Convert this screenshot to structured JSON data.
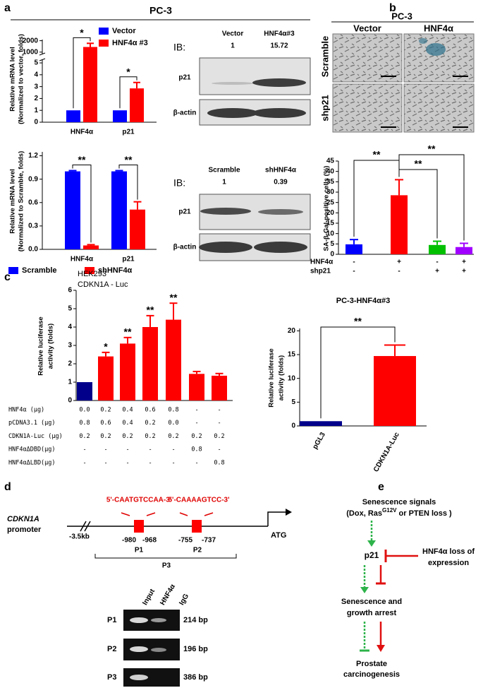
{
  "figure": {
    "letters": [
      "a",
      "b",
      "c",
      "d",
      "e"
    ],
    "a_title": "PC-3"
  },
  "chart_data": [
    {
      "type": "bar",
      "ylabel": [
        "Relative mRNA level",
        "(Normalized to vector, folds)"
      ],
      "categories": [
        "HNF4α",
        "p21"
      ],
      "series": [
        {
          "name": "Vector",
          "color": "#0000ff",
          "values": [
            1,
            1
          ]
        },
        {
          "name": "HNF4α #3",
          "color": "#ff0000",
          "values": [
            1450,
            2.85
          ],
          "errors": [
            320,
            0.5
          ]
        }
      ],
      "ylim": [
        0,
        2100
      ],
      "ybreak": [
        5.3,
        800
      ],
      "yticks": [
        0,
        1,
        2,
        3,
        4,
        5,
        1000,
        2000
      ],
      "significance": [
        "*",
        "*"
      ],
      "legend": "upper right"
    },
    {
      "type": "bar",
      "ylabel": [
        "Relative mRNA level",
        "(Normalized to Scramble, folds)"
      ],
      "categories": [
        "HNF4α",
        "p21"
      ],
      "series": [
        {
          "name": "Scramble",
          "color": "#0000ff",
          "values": [
            1,
            1
          ],
          "errors": [
            0.01,
            0.01
          ]
        },
        {
          "name": "shHNF4α",
          "color": "#ff0000",
          "values": [
            0.05,
            0.51
          ],
          "errors": [
            0.01,
            0.1
          ]
        }
      ],
      "ylim": [
        0,
        1.25
      ],
      "yticks": [
        {
          "value": 0,
          "label": "0.0"
        },
        0.3,
        0.6,
        0.9,
        1.2
      ],
      "significance": [
        "**",
        "**"
      ],
      "legend": "bottom"
    },
    {
      "type": "bar",
      "ylabel": [
        "SA-β-Gal-positive cells (%)"
      ],
      "categories": [
        null,
        null,
        null,
        null
      ],
      "values": [
        4.8,
        28.5,
        4.5,
        3.5
      ],
      "errors": [
        2.3,
        7.5,
        1.8,
        1.8
      ],
      "colors": [
        "#0000ff",
        "#ff0000",
        "#00c000",
        "#a000ff"
      ],
      "ylim": [
        0,
        45
      ],
      "yticks": [
        0,
        5,
        10,
        15,
        20,
        25,
        30,
        35,
        40,
        45
      ],
      "significance": [
        "**",
        "**",
        "**"
      ],
      "conditions": [
        {
          "name": "HNF4α",
          "values": [
            "-",
            "+",
            "-",
            "+"
          ]
        },
        {
          "name": "shp21",
          "values": [
            "-",
            "-",
            "+",
            "+"
          ]
        }
      ]
    },
    {
      "type": "bar",
      "title": [
        "HEK293",
        "CDKN1A - Luc"
      ],
      "ylabel": [
        "Relative luciferase",
        "activity (folds)"
      ],
      "categories": [
        null,
        null,
        null,
        null,
        null,
        null,
        null
      ],
      "values": [
        1,
        2.4,
        3.1,
        4.0,
        4.4,
        1.45,
        1.35
      ],
      "errors": [
        null,
        0.22,
        0.33,
        0.62,
        0.9,
        0.13,
        0.12
      ],
      "colors": [
        "#00008b",
        "#ff0000",
        "#ff0000",
        "#ff0000",
        "#ff0000",
        "#ff0000",
        "#ff0000"
      ],
      "ylim": [
        0,
        6
      ],
      "yticks": [
        0,
        1,
        2,
        3,
        4,
        5,
        6
      ],
      "significance": [
        null,
        "*",
        "**",
        "**",
        "**",
        null,
        null
      ],
      "conditions": [
        {
          "name": "HNF4α (μg)",
          "values": [
            "0.0",
            "0.2",
            "0.4",
            "0.6",
            "0.8",
            "-",
            "-"
          ]
        },
        {
          "name": "pCDNA3.1 (μg)",
          "values": [
            "0.8",
            "0.6",
            "0.4",
            "0.2",
            "0.0",
            "-",
            "-"
          ]
        },
        {
          "name": "CDKN1A-Luc (μg)",
          "values": [
            "0.2",
            "0.2",
            "0.2",
            "0.2",
            "0.2",
            "0.2",
            "0.2"
          ]
        },
        {
          "name": "HNF4αΔDBD(μg)",
          "values": [
            "-",
            "-",
            "-",
            "-",
            "-",
            "0.8",
            "-"
          ]
        },
        {
          "name": "HNF4αΔLBD(μg)",
          "values": [
            "-",
            "-",
            "-",
            "-",
            "-",
            "-",
            "0.8"
          ]
        }
      ]
    },
    {
      "type": "bar",
      "title": "PC-3-HNF4α#3",
      "ylabel": [
        "Relative luciferase",
        "activity (folds)"
      ],
      "categories": [
        "pGL3",
        "CDKN1A-Luc"
      ],
      "values": [
        1,
        14.7
      ],
      "errors": [
        null,
        2.3
      ],
      "colors": [
        "#00008b",
        "#ff0000"
      ],
      "ylim": [
        0,
        20.5
      ],
      "yticks": [
        0,
        5,
        10,
        15,
        20
      ],
      "significance": [
        "**"
      ]
    }
  ],
  "blots": [
    {
      "ib": "IB:",
      "lanes": [
        "Vector",
        "HNF4α#3"
      ],
      "quant": [
        1,
        15.72
      ],
      "rows": [
        "p21",
        "β-actin"
      ]
    },
    {
      "ib": "IB:",
      "lanes": [
        "Scramble",
        "shHNF4α"
      ],
      "quant": [
        1,
        0.39
      ],
      "rows": [
        "p21",
        "β-actin"
      ]
    }
  ],
  "micrographs": {
    "title": "PC-3",
    "columns": [
      "Vector",
      "HNF4α"
    ],
    "rows": [
      "Scramble",
      "shp21"
    ]
  },
  "promoter": {
    "gene": "CDKN1A",
    "label": "promoter",
    "start": "-3.5kb",
    "sites": [
      {
        "sequence": "5'-CAATGTCCAA-3'",
        "from": "-980",
        "to": "-968",
        "name": "P1"
      },
      {
        "sequence": "5'-CAAAAGTCC-3'",
        "from": "-755",
        "to": "-737",
        "name": "P2"
      }
    ],
    "span": "P3",
    "tss": "ATG"
  },
  "chip": {
    "columns": [
      "Input",
      "HNF4α",
      "IgG"
    ],
    "rows": [
      {
        "name": "P1",
        "size": "214 bp"
      },
      {
        "name": "P2",
        "size": "196 bp"
      },
      {
        "name": "P3",
        "size": "386 bp"
      }
    ]
  },
  "model": {
    "signal": "Senescence signals",
    "signal_detail": [
      "(Dox, Ras",
      "G12V",
      " or PTEN loss )"
    ],
    "node": "p21",
    "inhibitor": [
      "HNF4α loss of",
      "expression"
    ],
    "outcome": [
      "Senescence and",
      "growth arrest"
    ],
    "final": [
      "Prostate",
      "carcinogenesis"
    ]
  }
}
